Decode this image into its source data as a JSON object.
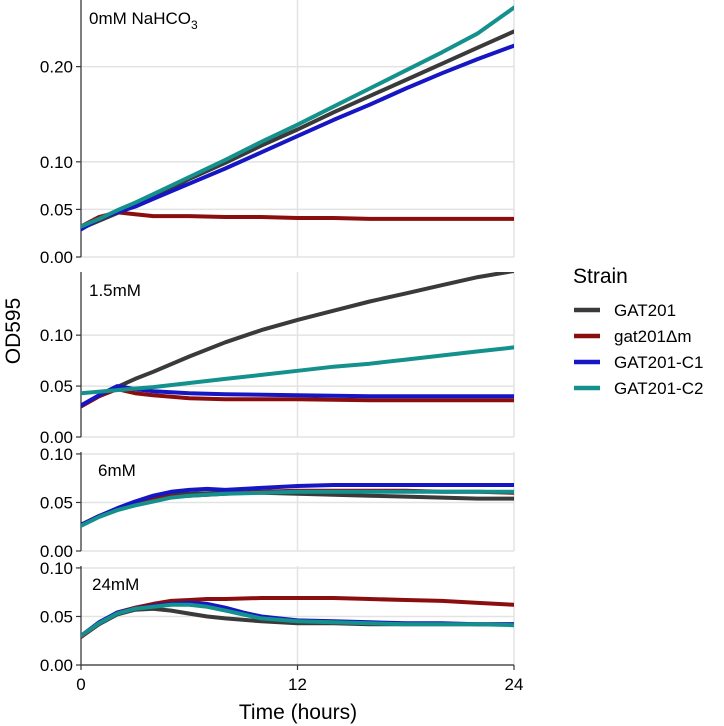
{
  "chart_data": {
    "type": "line",
    "ylabel": "OD595",
    "xlabel": "Time (hours)",
    "x_ticks": [
      0,
      12,
      24
    ],
    "xlim": [
      0,
      24
    ],
    "legend": {
      "title": "Strain",
      "position": "right",
      "entries": [
        {
          "name": "GAT201",
          "color": "#3a3a3a"
        },
        {
          "name": "gat201Δm",
          "color": "#8b0e0e"
        },
        {
          "name": "GAT201-C1",
          "color": "#1616c4"
        },
        {
          "name": "GAT201-C2",
          "color": "#14918d"
        }
      ]
    },
    "panels": [
      {
        "label": "0mM NaHCO",
        "label_sub": "3",
        "ylim": [
          0,
          0.27
        ],
        "y_ticks": [
          0.0,
          0.05,
          0.1,
          0.2
        ],
        "y_tick_labels": [
          "0.00",
          "0.05",
          "0.10",
          "0.20"
        ],
        "series": [
          {
            "name": "GAT201",
            "x": [
              0,
              1,
              2,
              3,
              4,
              5,
              6,
              8,
              10,
              12,
              14,
              16,
              18,
              20,
              22,
              24
            ],
            "y": [
              0.03,
              0.038,
              0.046,
              0.054,
              0.063,
              0.072,
              0.082,
              0.099,
              0.117,
              0.134,
              0.152,
              0.169,
              0.186,
              0.203,
              0.22,
              0.237
            ]
          },
          {
            "name": "gat201Δm",
            "x": [
              0,
              1,
              2,
              3,
              4,
              6,
              8,
              10,
              12,
              14,
              16,
              18,
              20,
              22,
              24
            ],
            "y": [
              0.032,
              0.042,
              0.047,
              0.045,
              0.043,
              0.043,
              0.042,
              0.042,
              0.041,
              0.041,
              0.04,
              0.04,
              0.04,
              0.04,
              0.04
            ]
          },
          {
            "name": "GAT201-C1",
            "x": [
              0,
              1,
              2,
              3,
              4,
              5,
              6,
              8,
              10,
              12,
              14,
              16,
              18,
              20,
              22,
              24
            ],
            "y": [
              0.029,
              0.04,
              0.047,
              0.053,
              0.061,
              0.069,
              0.077,
              0.093,
              0.11,
              0.127,
              0.144,
              0.16,
              0.177,
              0.193,
              0.208,
              0.222
            ]
          },
          {
            "name": "GAT201-C2",
            "x": [
              0,
              1,
              2,
              3,
              4,
              6,
              8,
              10,
              12,
              14,
              16,
              18,
              20,
              22,
              24
            ],
            "y": [
              0.032,
              0.04,
              0.049,
              0.057,
              0.066,
              0.084,
              0.102,
              0.121,
              0.139,
              0.158,
              0.177,
              0.196,
              0.215,
              0.235,
              0.262
            ]
          }
        ]
      },
      {
        "label": "1.5mM",
        "ylim": [
          0,
          0.162
        ],
        "y_ticks": [
          0.0,
          0.05,
          0.1
        ],
        "y_tick_labels": [
          "0.00",
          "0.05",
          "0.10"
        ],
        "series": [
          {
            "name": "GAT201",
            "x": [
              0,
              1,
              2,
              3,
              4,
              6,
              8,
              10,
              12,
              14,
              16,
              18,
              20,
              22,
              24
            ],
            "y": [
              0.03,
              0.04,
              0.049,
              0.057,
              0.064,
              0.079,
              0.093,
              0.105,
              0.115,
              0.124,
              0.133,
              0.141,
              0.149,
              0.157,
              0.163
            ]
          },
          {
            "name": "gat201Δm",
            "x": [
              0,
              1,
              2,
              3,
              4,
              6,
              8,
              12,
              16,
              20,
              24
            ],
            "y": [
              0.03,
              0.04,
              0.047,
              0.043,
              0.041,
              0.038,
              0.037,
              0.037,
              0.036,
              0.036,
              0.036
            ]
          },
          {
            "name": "GAT201-C1",
            "x": [
              0,
              1,
              2,
              3,
              4,
              6,
              8,
              12,
              16,
              20,
              24
            ],
            "y": [
              0.031,
              0.041,
              0.05,
              0.047,
              0.045,
              0.043,
              0.042,
              0.041,
              0.04,
              0.04,
              0.04
            ]
          },
          {
            "name": "GAT201-C2",
            "x": [
              0,
              2,
              4,
              6,
              8,
              10,
              12,
              14,
              16,
              18,
              20,
              22,
              24
            ],
            "y": [
              0.043,
              0.046,
              0.049,
              0.053,
              0.057,
              0.061,
              0.065,
              0.069,
              0.072,
              0.076,
              0.08,
              0.084,
              0.088
            ]
          }
        ]
      },
      {
        "label": "6mM",
        "ylim": [
          0,
          0.102
        ],
        "y_ticks": [
          0.0,
          0.05,
          0.1
        ],
        "y_tick_labels": [
          "0.00",
          "0.05",
          "0.10"
        ],
        "series": [
          {
            "name": "GAT201",
            "x": [
              0,
              1,
              2,
              3,
              4,
              5,
              6,
              8,
              10,
              12,
              14,
              16,
              18,
              20,
              22,
              24
            ],
            "y": [
              0.027,
              0.036,
              0.043,
              0.049,
              0.054,
              0.058,
              0.059,
              0.06,
              0.06,
              0.059,
              0.058,
              0.057,
              0.056,
              0.055,
              0.054,
              0.054
            ]
          },
          {
            "name": "gat201Δm",
            "x": [
              0,
              1,
              2,
              3,
              4,
              5,
              6,
              8,
              10,
              12,
              14,
              16,
              18,
              20,
              22,
              24
            ],
            "y": [
              0.027,
              0.036,
              0.043,
              0.049,
              0.053,
              0.056,
              0.057,
              0.059,
              0.061,
              0.062,
              0.062,
              0.062,
              0.062,
              0.061,
              0.061,
              0.06
            ]
          },
          {
            "name": "GAT201-C1",
            "x": [
              0,
              1,
              2,
              3,
              4,
              5,
              6,
              7,
              8,
              10,
              12,
              14,
              16,
              18,
              20,
              22,
              24
            ],
            "y": [
              0.027,
              0.036,
              0.044,
              0.051,
              0.057,
              0.061,
              0.063,
              0.064,
              0.063,
              0.065,
              0.067,
              0.068,
              0.068,
              0.068,
              0.068,
              0.068,
              0.068
            ]
          },
          {
            "name": "GAT201-C2",
            "x": [
              0,
              1,
              2,
              3,
              4,
              5,
              6,
              8,
              10,
              12,
              14,
              16,
              18,
              20,
              22,
              24
            ],
            "y": [
              0.026,
              0.035,
              0.042,
              0.047,
              0.051,
              0.055,
              0.057,
              0.059,
              0.06,
              0.061,
              0.061,
              0.061,
              0.061,
              0.061,
              0.061,
              0.061
            ]
          }
        ]
      },
      {
        "label": "24mM",
        "ylim": [
          0,
          0.102
        ],
        "y_ticks": [
          0.0,
          0.05,
          0.1
        ],
        "y_tick_labels": [
          "0.00",
          "0.05",
          "0.10"
        ],
        "series": [
          {
            "name": "GAT201",
            "x": [
              0,
              1,
              2,
              3,
              4,
              5,
              6,
              7,
              8,
              10,
              12,
              14,
              16,
              18,
              20,
              22,
              24
            ],
            "y": [
              0.029,
              0.042,
              0.052,
              0.057,
              0.058,
              0.056,
              0.053,
              0.05,
              0.048,
              0.045,
              0.043,
              0.043,
              0.042,
              0.042,
              0.042,
              0.042,
              0.042
            ]
          },
          {
            "name": "gat201Δm",
            "x": [
              0,
              1,
              2,
              3,
              4,
              5,
              6,
              7,
              8,
              10,
              12,
              14,
              16,
              18,
              20,
              22,
              24
            ],
            "y": [
              0.029,
              0.043,
              0.054,
              0.059,
              0.063,
              0.066,
              0.067,
              0.068,
              0.068,
              0.069,
              0.069,
              0.069,
              0.068,
              0.067,
              0.066,
              0.064,
              0.062
            ]
          },
          {
            "name": "GAT201-C1",
            "x": [
              0,
              1,
              2,
              3,
              4,
              5,
              6,
              7,
              8,
              9,
              10,
              12,
              14,
              16,
              18,
              20,
              22,
              24
            ],
            "y": [
              0.03,
              0.044,
              0.054,
              0.058,
              0.061,
              0.063,
              0.064,
              0.063,
              0.059,
              0.054,
              0.05,
              0.046,
              0.045,
              0.044,
              0.043,
              0.043,
              0.042,
              0.042
            ]
          },
          {
            "name": "GAT201-C2",
            "x": [
              0,
              1,
              2,
              3,
              4,
              5,
              6,
              7,
              8,
              9,
              10,
              12,
              14,
              16,
              18,
              20,
              22,
              24
            ],
            "y": [
              0.03,
              0.043,
              0.053,
              0.058,
              0.06,
              0.062,
              0.062,
              0.06,
              0.056,
              0.052,
              0.048,
              0.045,
              0.044,
              0.043,
              0.042,
              0.042,
              0.042,
              0.041
            ]
          }
        ]
      }
    ]
  }
}
